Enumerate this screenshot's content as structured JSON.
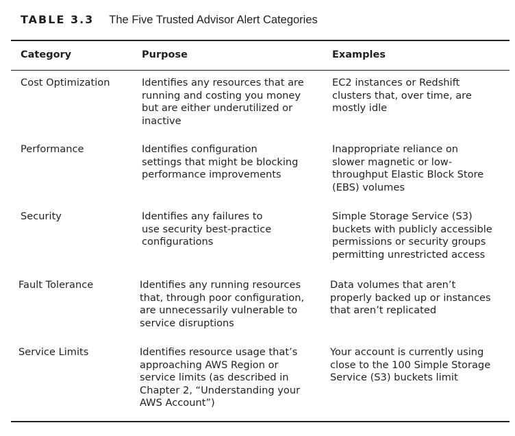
{
  "caption": {
    "label": "TABLE 3.3",
    "title": "The Five Trusted Advisor Alert Categories"
  },
  "table": {
    "headers": [
      "Category",
      "Purpose",
      "Examples"
    ],
    "rows": [
      {
        "category": "Cost Optimization",
        "purpose": "Identifies any resources that are\nrunning and costing you money\nbut are either underutilized or\ninactive",
        "examples": "EC2 instances or Redshift\nclusters that, over time, are\nmostly idle"
      },
      {
        "category": "Performance",
        "purpose": "Identifies configuration\nsettings that might be blocking\nperformance improvements",
        "examples": "Inappropriate reliance on\nslower magnetic or low-\nthroughput Elastic Block Store\n(EBS) volumes"
      },
      {
        "category": "Security",
        "purpose": "Identifies any failures to\nuse security best-practice\nconfigurations",
        "examples": "Simple Storage Service (S3)\nbuckets with publicly accessible\npermissions or security groups\npermitting unrestricted access"
      },
      {
        "category": "Fault Tolerance",
        "purpose": "Identifies any running resources\nthat, through poor configuration,\nare unnecessarily vulnerable to\nservice disruptions",
        "examples": "Data volumes that aren’t\nproperly backed up or instances\nthat aren’t replicated"
      },
      {
        "category": "Service Limits",
        "purpose": "Identifies resource usage that’s\napproaching AWS Region or\nservice limits (as described in\nChapter 2, “Understanding your\nAWS Account”)",
        "examples": "Your account is currently using\nclose to the 100 Simple Storage\nService (S3) buckets limit"
      }
    ]
  }
}
